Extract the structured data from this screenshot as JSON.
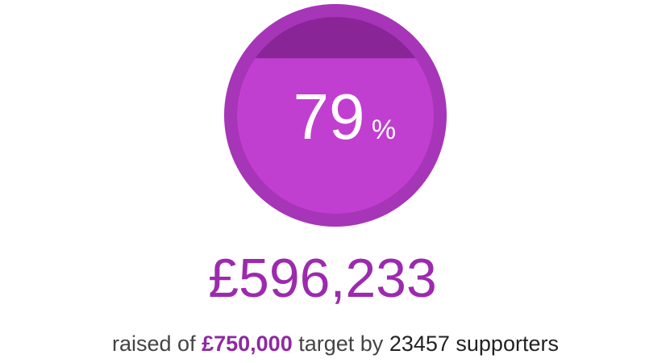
{
  "progress": {
    "percent": 79,
    "value_label": "79",
    "unit_label": "%"
  },
  "raised": {
    "amount": "£596,233"
  },
  "caption": {
    "prefix": "raised of",
    "target": "£750,000",
    "middle": "target by",
    "supporters": "23457 supporters"
  },
  "colors": {
    "ring": "#a735b8",
    "fill": "#c13fd0",
    "empty": "#8a2598",
    "accent": "#9c2aae"
  }
}
